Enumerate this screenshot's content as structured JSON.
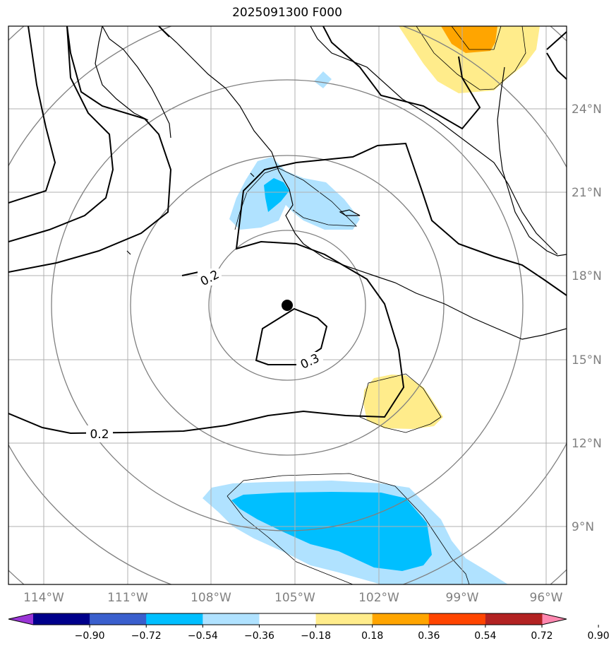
{
  "title": "2025091300 F000",
  "map": {
    "lon_range": [
      -115.3,
      -95.3
    ],
    "lat_range": [
      7.0,
      27.0
    ],
    "lon_ticks": [
      -114,
      -111,
      -108,
      -105,
      -102,
      -99,
      -96
    ],
    "lat_ticks": [
      9,
      12,
      15,
      18,
      21,
      24
    ],
    "lon_tick_labels": [
      "114°W",
      "111°W",
      "108°W",
      "105°W",
      "102°W",
      "99°W",
      "96°W"
    ],
    "lat_tick_labels": [
      "9°N",
      "12°N",
      "15°N",
      "18°N",
      "21°N",
      "24°N"
    ],
    "center_marker": {
      "lon": -105.3,
      "lat": 17.0
    },
    "range_rings": "concentric rings around center",
    "contour_labels": [
      "0.2",
      "0.3",
      "0.2"
    ]
  },
  "colorbar": {
    "levels": [
      "−0.90",
      "−0.72",
      "−0.54",
      "−0.36",
      "−0.18",
      "0.18",
      "0.36",
      "0.54",
      "0.72",
      "0.90"
    ],
    "colors": [
      "#9a35d6",
      "#00008b",
      "#3a5fcd",
      "#00bfff",
      "#b0e2ff",
      "#ffffff",
      "#ffec8b",
      "#ffa500",
      "#ff4500",
      "#b22222",
      "#ff88b0"
    ]
  }
}
